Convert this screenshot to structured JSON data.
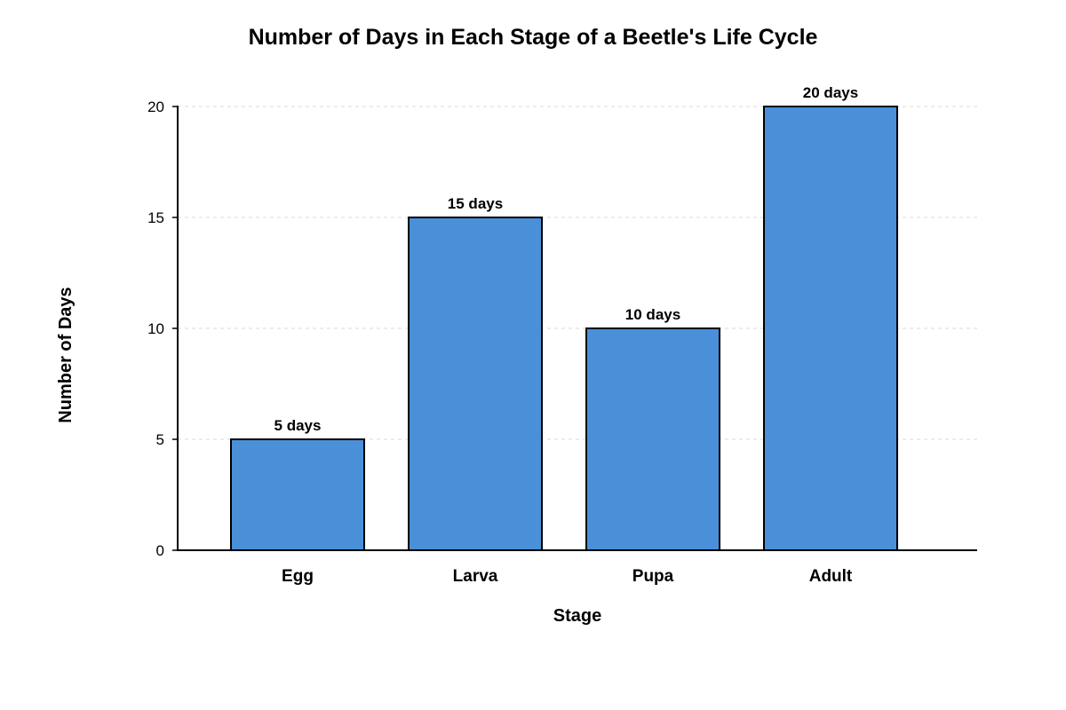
{
  "chart_data": {
    "type": "bar",
    "title": "Number of Days in Each Stage of a Beetle's Life Cycle",
    "xlabel": "Stage",
    "ylabel": "Number of Days",
    "categories": [
      "Egg",
      "Larva",
      "Pupa",
      "Adult"
    ],
    "values": [
      5,
      15,
      10,
      20
    ],
    "data_labels": [
      "5 days",
      "15 days",
      "10 days",
      "20 days"
    ],
    "ylim": [
      0,
      20
    ],
    "yticks": [
      0,
      5,
      10,
      15,
      20
    ],
    "ytick_labels": [
      "0",
      "5",
      "10",
      "15",
      "20"
    ],
    "grid": true,
    "legend": "none",
    "bar_color": "#4a90d9",
    "bar_edge_color": "#000000"
  }
}
